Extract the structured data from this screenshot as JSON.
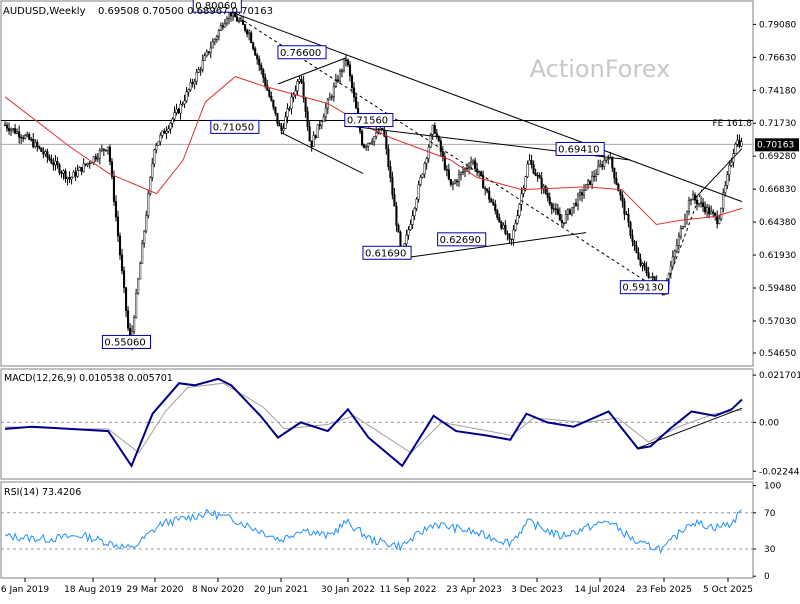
{
  "header": {
    "symbol": "AUDUSD,Weekly",
    "ohlc": "0.69508 0.70500 0.68967 0.70163"
  },
  "watermark": "ActionForex",
  "colors": {
    "candle": "#000000",
    "ma": "#e03030",
    "macd_line": "#00008b",
    "macd_signal": "#a0a0a0",
    "rsi": "#1e90ff",
    "label_border": "#0000aa",
    "price_tag_bg": "#000000",
    "price_tag_text": "#ffffff",
    "watermark": "#c8c8c8"
  },
  "chart_data": [
    {
      "type": "candlestick",
      "panel": "price",
      "title": "AUDUSD,Weekly",
      "ylim": [
        0.5368,
        0.8082
      ],
      "y_ticks": [
        "0.79080",
        "0.76630",
        "0.74180",
        "0.71730",
        "0.69280",
        "0.66830",
        "0.64380",
        "0.61930",
        "0.59480",
        "0.57030",
        "0.54650"
      ],
      "y_tick_values": [
        0.7908,
        0.7663,
        0.7418,
        0.7173,
        0.6928,
        0.6683,
        0.6438,
        0.6193,
        0.5948,
        0.5703,
        0.5465
      ],
      "last_price": "0.70163",
      "last_price_value": 0.70163,
      "fe_label": "FE 161.8",
      "fe_value": 0.7193,
      "x_labels": [
        "6 Jan 2019",
        "18 Aug 2019",
        "29 Mar 2020",
        "8 Nov 2020",
        "20 Jun 2021",
        "30 Jan 2022",
        "11 Sep 2022",
        "23 Apr 2023",
        "3 Dec 2023",
        "14 Jul 2024",
        "23 Feb 2025",
        "5 Oct 2025"
      ],
      "price_path": [
        {
          "date": "2019-01-06",
          "value": 0.716
        },
        {
          "date": "2019-04-01",
          "value": 0.705
        },
        {
          "date": "2019-08-18",
          "value": 0.676
        },
        {
          "date": "2019-12-30",
          "value": 0.701
        },
        {
          "date": "2020-03-15",
          "value": 0.5506
        },
        {
          "date": "2020-06-07",
          "value": 0.7
        },
        {
          "date": "2020-09-01",
          "value": 0.728
        },
        {
          "date": "2021-02-21",
          "value": 0.8006
        },
        {
          "date": "2021-05-01",
          "value": 0.785
        },
        {
          "date": "2021-08-20",
          "value": 0.7105
        },
        {
          "date": "2021-10-28",
          "value": 0.755
        },
        {
          "date": "2021-12-01",
          "value": 0.7
        },
        {
          "date": "2022-04-04",
          "value": 0.766
        },
        {
          "date": "2022-06-01",
          "value": 0.7
        },
        {
          "date": "2022-08-10",
          "value": 0.713
        },
        {
          "date": "2022-10-13",
          "value": 0.6169
        },
        {
          "date": "2023-02-01",
          "value": 0.7156
        },
        {
          "date": "2023-04-01",
          "value": 0.67
        },
        {
          "date": "2023-06-15",
          "value": 0.69
        },
        {
          "date": "2023-10-26",
          "value": 0.6269
        },
        {
          "date": "2023-12-28",
          "value": 0.69
        },
        {
          "date": "2024-04-19",
          "value": 0.643
        },
        {
          "date": "2024-09-30",
          "value": 0.6941
        },
        {
          "date": "2025-01-13",
          "value": 0.614
        },
        {
          "date": "2025-04-09",
          "value": 0.5913
        },
        {
          "date": "2025-07-11",
          "value": 0.663
        },
        {
          "date": "2025-09-01",
          "value": 0.654
        },
        {
          "date": "2025-10-15",
          "value": 0.645
        },
        {
          "date": "2025-12-15",
          "value": 0.705
        },
        {
          "date": "2026-01-06",
          "value": 0.70163
        }
      ],
      "ma_path": [
        {
          "date": "2019-01-06",
          "value": 0.737
        },
        {
          "date": "2019-08-18",
          "value": 0.7
        },
        {
          "date": "2020-01-01",
          "value": 0.68
        },
        {
          "date": "2020-06-15",
          "value": 0.665
        },
        {
          "date": "2020-09-15",
          "value": 0.69
        },
        {
          "date": "2020-12-01",
          "value": 0.733
        },
        {
          "date": "2021-03-15",
          "value": 0.752
        },
        {
          "date": "2021-06-20",
          "value": 0.745
        },
        {
          "date": "2022-01-30",
          "value": 0.732
        },
        {
          "date": "2022-07-01",
          "value": 0.713
        },
        {
          "date": "2022-09-11",
          "value": 0.706
        },
        {
          "date": "2023-04-01",
          "value": 0.69
        },
        {
          "date": "2023-07-01",
          "value": 0.677
        },
        {
          "date": "2023-12-03",
          "value": 0.668
        },
        {
          "date": "2024-07-14",
          "value": 0.67
        },
        {
          "date": "2024-11-15",
          "value": 0.668
        },
        {
          "date": "2025-03-15",
          "value": 0.642
        },
        {
          "date": "2025-06-01",
          "value": 0.645
        },
        {
          "date": "2025-10-05",
          "value": 0.648
        },
        {
          "date": "2026-01-06",
          "value": 0.654
        }
      ],
      "pivot_labels": [
        {
          "text": "0.80060",
          "date": "2020-10-20",
          "value": 0.8006
        },
        {
          "text": "0.76600",
          "date": "2021-08-10",
          "value": 0.766
        },
        {
          "text": "0.71050",
          "date": "2020-12-20",
          "value": 0.7105
        },
        {
          "text": "0.71560",
          "date": "2022-03-30",
          "value": 0.7156
        },
        {
          "text": "0.69410",
          "date": "2024-04-01",
          "value": 0.6941
        },
        {
          "text": "0.61690",
          "date": "2022-06-01",
          "value": 0.6169
        },
        {
          "text": "0.62690",
          "date": "2023-02-15",
          "value": 0.6269
        },
        {
          "text": "0.59130",
          "date": "2024-11-10",
          "value": 0.5913
        },
        {
          "text": "0.55060",
          "date": "2019-12-10",
          "value": 0.5506
        }
      ],
      "trendlines": [
        {
          "style": "solid",
          "from": {
            "date": "2021-02-21",
            "value": 0.8006
          },
          "to": {
            "date": "2026-01-06",
            "value": 0.659
          }
        },
        {
          "style": "dashed",
          "from": {
            "date": "2021-02-21",
            "value": 0.8006
          },
          "to": {
            "date": "2025-04-09",
            "value": 0.5913
          }
        },
        {
          "style": "solid",
          "from": {
            "date": "2021-08-10",
            "value": 0.7465
          },
          "to": {
            "date": "2022-04-04",
            "value": 0.766
          }
        },
        {
          "style": "solid",
          "from": {
            "date": "2021-08-20",
            "value": 0.7105
          },
          "to": {
            "date": "2022-06-01",
            "value": 0.68
          }
        },
        {
          "style": "solid",
          "from": {
            "date": "2022-04-01",
            "value": 0.7156
          },
          "to": {
            "date": "2024-12-15",
            "value": 0.69
          }
        },
        {
          "style": "solid",
          "from": {
            "date": "2022-10-13",
            "value": 0.6169
          },
          "to": {
            "date": "2024-07-14",
            "value": 0.636
          }
        },
        {
          "style": "dashed",
          "from": {
            "date": "2025-04-09",
            "value": 0.5913
          },
          "to": {
            "date": "2025-08-20",
            "value": 0.668
          }
        },
        {
          "style": "solid",
          "from": {
            "date": "2025-07-20",
            "value": 0.66
          },
          "to": {
            "date": "2026-01-06",
            "value": 0.6985
          }
        }
      ]
    },
    {
      "type": "line",
      "panel": "macd",
      "title": "MACD(12,26,9) 0.010538 0.005701",
      "ylim": [
        -0.026,
        0.0245
      ],
      "y_ticks": [
        "0.021701",
        "0.00",
        "-0.022445"
      ],
      "y_tick_values": [
        0.021701,
        0.0,
        -0.022445
      ],
      "zero_line": 0.0,
      "series": [
        {
          "role": "macd",
          "values": [
            {
              "date": "2019-01-06",
              "value": -0.003
            },
            {
              "date": "2019-04-10",
              "value": -0.002
            },
            {
              "date": "2019-08-18",
              "value": -0.003
            },
            {
              "date": "2019-12-30",
              "value": -0.004
            },
            {
              "date": "2020-03-20",
              "value": -0.02
            },
            {
              "date": "2020-06-01",
              "value": 0.004
            },
            {
              "date": "2020-09-01",
              "value": 0.018
            },
            {
              "date": "2020-10-25",
              "value": 0.017
            },
            {
              "date": "2021-01-15",
              "value": 0.02
            },
            {
              "date": "2021-03-01",
              "value": 0.017
            },
            {
              "date": "2021-06-10",
              "value": 0.003
            },
            {
              "date": "2021-08-10",
              "value": -0.007
            },
            {
              "date": "2021-10-28",
              "value": 0.0
            },
            {
              "date": "2022-01-30",
              "value": -0.004
            },
            {
              "date": "2022-04-10",
              "value": 0.006
            },
            {
              "date": "2022-06-20",
              "value": -0.007
            },
            {
              "date": "2022-10-15",
              "value": -0.02
            },
            {
              "date": "2023-02-01",
              "value": 0.003
            },
            {
              "date": "2023-04-20",
              "value": -0.004
            },
            {
              "date": "2023-08-01",
              "value": -0.006
            },
            {
              "date": "2023-10-25",
              "value": -0.008
            },
            {
              "date": "2023-12-20",
              "value": 0.004
            },
            {
              "date": "2024-03-01",
              "value": 0.0
            },
            {
              "date": "2024-06-01",
              "value": -0.002
            },
            {
              "date": "2024-09-30",
              "value": 0.005
            },
            {
              "date": "2025-01-10",
              "value": -0.012
            },
            {
              "date": "2025-02-23",
              "value": -0.011
            },
            {
              "date": "2025-05-01",
              "value": -0.003
            },
            {
              "date": "2025-07-15",
              "value": 0.005
            },
            {
              "date": "2025-10-05",
              "value": 0.003
            },
            {
              "date": "2025-12-01",
              "value": 0.006
            },
            {
              "date": "2026-01-06",
              "value": 0.0105
            }
          ]
        },
        {
          "role": "signal",
          "values": [
            {
              "date": "2019-01-06",
              "value": -0.002
            },
            {
              "date": "2019-08-18",
              "value": -0.003
            },
            {
              "date": "2019-12-30",
              "value": -0.003
            },
            {
              "date": "2020-04-15",
              "value": -0.014
            },
            {
              "date": "2020-07-15",
              "value": 0.005
            },
            {
              "date": "2020-10-01",
              "value": 0.016
            },
            {
              "date": "2021-02-01",
              "value": 0.018
            },
            {
              "date": "2021-06-20",
              "value": 0.007
            },
            {
              "date": "2021-09-01",
              "value": -0.003
            },
            {
              "date": "2022-01-30",
              "value": -0.001
            },
            {
              "date": "2022-05-01",
              "value": 0.003
            },
            {
              "date": "2022-11-15",
              "value": -0.014
            },
            {
              "date": "2023-03-01",
              "value": 0.0
            },
            {
              "date": "2023-10-30",
              "value": -0.006
            },
            {
              "date": "2024-01-15",
              "value": 0.002
            },
            {
              "date": "2024-07-14",
              "value": 0.0
            },
            {
              "date": "2024-11-01",
              "value": 0.002
            },
            {
              "date": "2025-02-15",
              "value": -0.009
            },
            {
              "date": "2025-06-01",
              "value": -0.002
            },
            {
              "date": "2025-10-05",
              "value": 0.004
            },
            {
              "date": "2026-01-06",
              "value": 0.0057
            }
          ]
        }
      ],
      "trendlines": [
        {
          "style": "solid",
          "from": {
            "date": "2025-01-10",
            "value": -0.0118
          },
          "to": {
            "date": "2026-01-06",
            "value": 0.0065
          }
        }
      ]
    },
    {
      "type": "line",
      "panel": "rsi",
      "title": "RSI(14) 73.4206",
      "ylim": [
        -2,
        104
      ],
      "y_ticks": [
        "100",
        "70",
        "30",
        "0"
      ],
      "y_tick_values": [
        100,
        70,
        30,
        0
      ],
      "levels": [
        70,
        30
      ],
      "series": [
        {
          "role": "rsi",
          "values": [
            {
              "date": "2019-01-06",
              "value": 44
            },
            {
              "date": "2019-06-01",
              "value": 41
            },
            {
              "date": "2019-10-01",
              "value": 45
            },
            {
              "date": "2020-03-20",
              "value": 30
            },
            {
              "date": "2020-07-01",
              "value": 58
            },
            {
              "date": "2020-12-15",
              "value": 70
            },
            {
              "date": "2021-03-15",
              "value": 62
            },
            {
              "date": "2021-08-20",
              "value": 40
            },
            {
              "date": "2021-11-01",
              "value": 52
            },
            {
              "date": "2022-02-01",
              "value": 44
            },
            {
              "date": "2022-04-05",
              "value": 60
            },
            {
              "date": "2022-07-01",
              "value": 40
            },
            {
              "date": "2022-10-13",
              "value": 33
            },
            {
              "date": "2023-02-01",
              "value": 58
            },
            {
              "date": "2023-06-01",
              "value": 50
            },
            {
              "date": "2023-10-25",
              "value": 37
            },
            {
              "date": "2023-12-28",
              "value": 60
            },
            {
              "date": "2024-04-15",
              "value": 44
            },
            {
              "date": "2024-09-30",
              "value": 61
            },
            {
              "date": "2025-01-10",
              "value": 36
            },
            {
              "date": "2025-04-09",
              "value": 30
            },
            {
              "date": "2025-07-10",
              "value": 60
            },
            {
              "date": "2025-10-05",
              "value": 54
            },
            {
              "date": "2025-12-01",
              "value": 58
            },
            {
              "date": "2026-01-06",
              "value": 73.42
            }
          ]
        }
      ]
    }
  ]
}
